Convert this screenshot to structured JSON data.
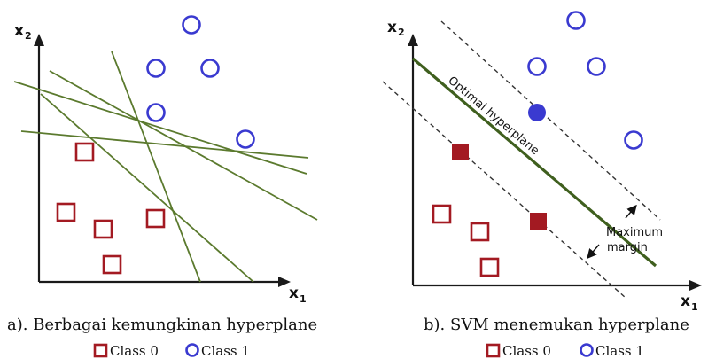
{
  "colors": {
    "class0": "#a31a22",
    "class1": "#3a3ad0",
    "hyperplane": "#5b7a2e",
    "optimal_hyperplane": "#3f5f1e"
  },
  "panel_a": {
    "axis_x": "x",
    "axis_x_sub": "1",
    "axis_y": "x",
    "axis_y_sub": "2",
    "caption": "a).  Berbagai kemungkinan hyperplane",
    "legend": {
      "class0": "Class 0",
      "class1": "Class 1"
    }
  },
  "panel_b": {
    "axis_x": "x",
    "axis_x_sub": "1",
    "axis_y": "x",
    "axis_y_sub": "2",
    "optimal_label": "Optimal hyperplane",
    "margin_label_1": "Maximum",
    "margin_label_2": "margin",
    "caption": "b).  SVM menemukan hyperplane",
    "legend": {
      "class0": "Class 0",
      "class1": "Class 1"
    }
  }
}
